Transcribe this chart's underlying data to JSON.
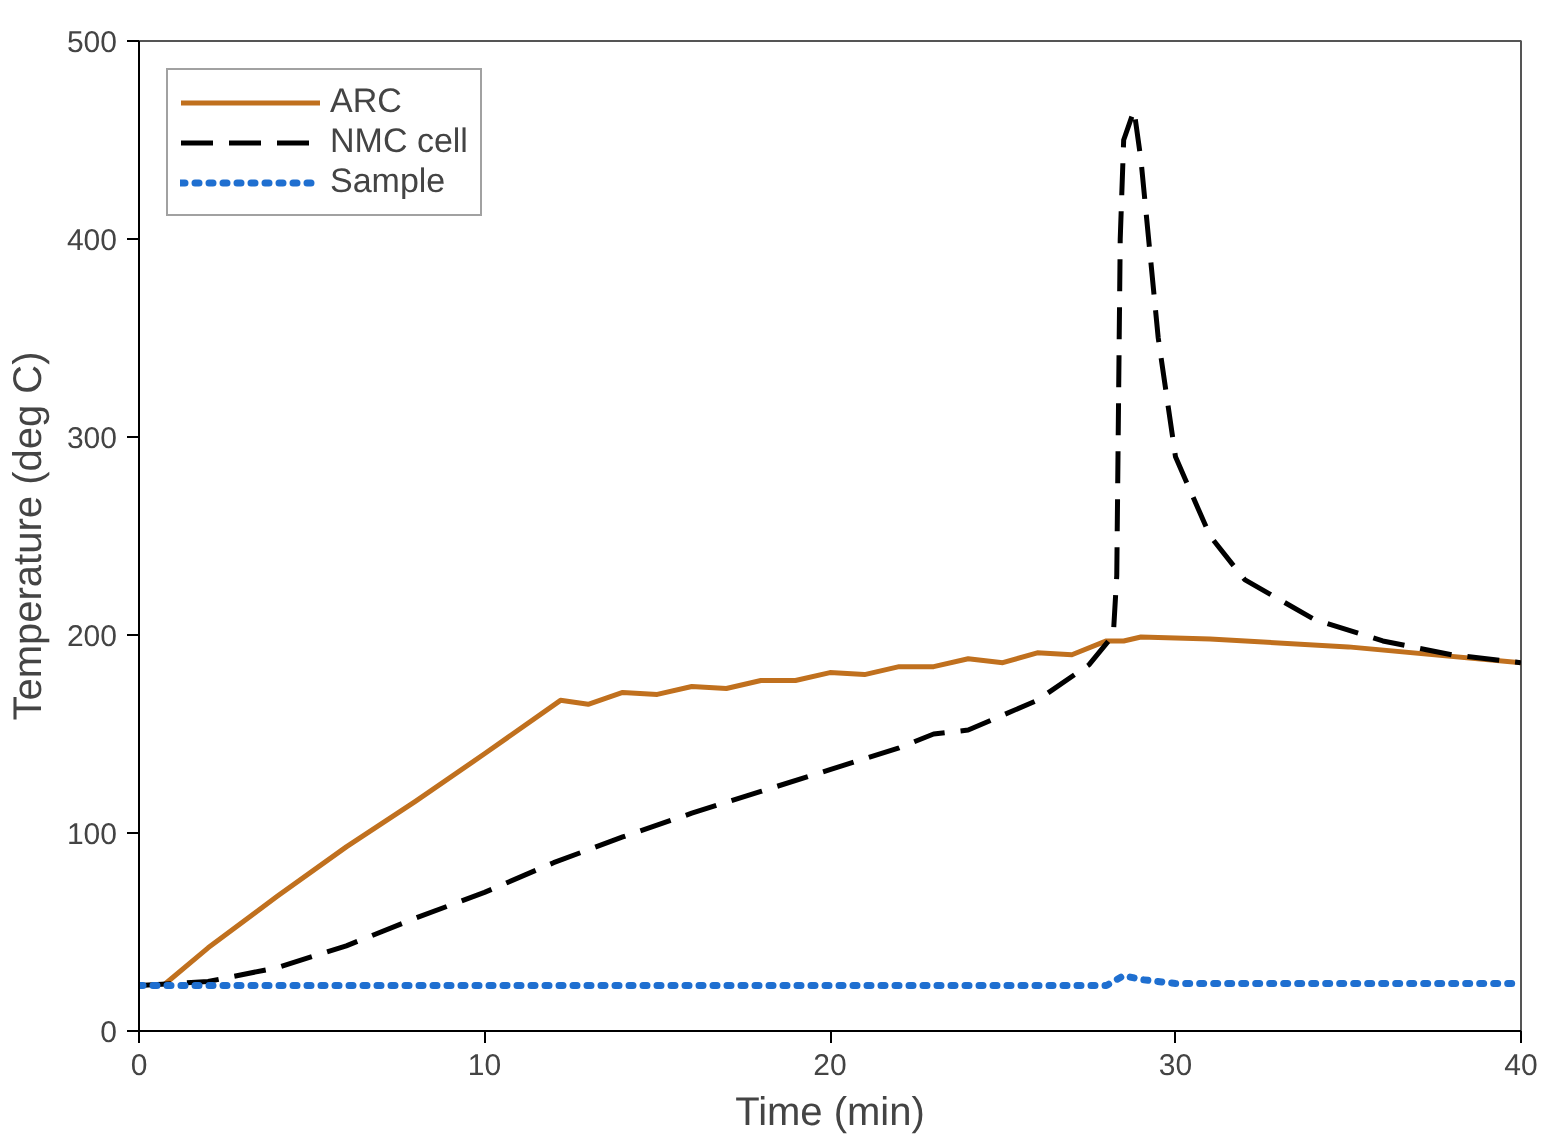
{
  "chart_data": {
    "type": "line",
    "xlabel": "Time (min)",
    "ylabel": "Temperature (deg C)",
    "xlim": [
      0,
      40
    ],
    "ylim": [
      0,
      500
    ],
    "xticks": [
      0,
      10,
      20,
      30,
      40
    ],
    "yticks": [
      0,
      100,
      200,
      300,
      400,
      500
    ],
    "grid": false,
    "legend": "top left",
    "series": [
      {
        "name": "ARC",
        "color": "#c0701e",
        "line_style": "solid",
        "x": [
          0.7,
          2,
          4,
          6,
          8,
          10,
          12.2,
          13,
          14,
          15,
          16,
          17,
          18,
          19,
          20,
          21,
          22,
          23,
          24,
          25,
          26,
          27,
          28,
          28.5,
          29,
          31,
          35,
          40
        ],
        "values": [
          23,
          42,
          68,
          93,
          116,
          140,
          167,
          165,
          171,
          170,
          174,
          173,
          177,
          177,
          181,
          180,
          184,
          184,
          188,
          186,
          191,
          190,
          197,
          197,
          199,
          198,
          194,
          186
        ]
      },
      {
        "name": "NMC cell",
        "color": "#000000",
        "line_style": "dashed",
        "x": [
          0,
          2,
          4,
          6,
          8,
          10,
          12,
          14,
          16,
          18,
          20,
          22,
          23,
          24,
          26,
          27.5,
          28.2,
          28.3,
          28.4,
          28.5,
          28.8,
          29,
          29.5,
          30,
          31,
          32,
          34,
          36,
          38,
          40
        ],
        "values": [
          23,
          25,
          32,
          43,
          57,
          70,
          85,
          98,
          110,
          121,
          132,
          143,
          150,
          152,
          167,
          185,
          200,
          230,
          400,
          450,
          465,
          440,
          350,
          290,
          250,
          228,
          208,
          197,
          190,
          186
        ]
      },
      {
        "name": "Sample",
        "color": "#1f6fd0",
        "line_style": "dotted",
        "x": [
          0,
          10,
          20,
          28,
          28.5,
          29,
          30,
          40
        ],
        "values": [
          23,
          23,
          23,
          23,
          28,
          26,
          24,
          24
        ]
      }
    ]
  }
}
